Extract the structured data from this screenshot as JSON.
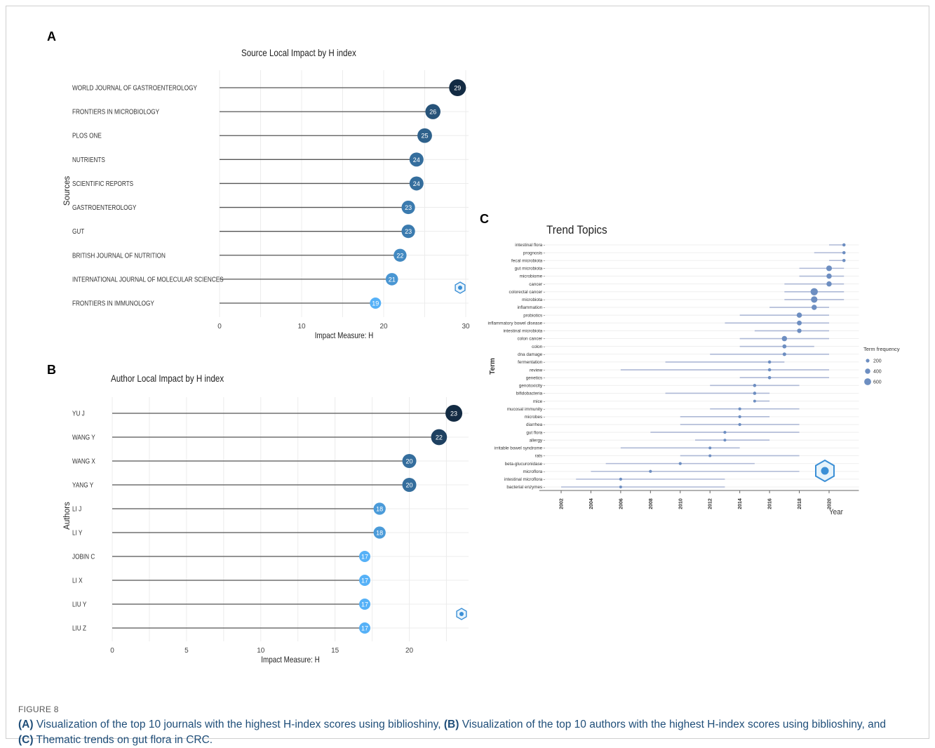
{
  "figure": {
    "label": "FIGURE 8",
    "caption": {
      "a_tag": "(A)",
      "a_text": " Visualization of the top 10 journals with the highest H-index scores using biblioshiny, ",
      "b_tag": "(B)",
      "b_text": " Visualization of the top 10 authors with the highest H-index scores using biblioshiny, and ",
      "c_tag": "(C)",
      "c_text": " Thematic trends on gut flora in CRC."
    }
  },
  "colors": {
    "dark": "#132b43",
    "light": "#56b1f7",
    "trend_point": "#6d8ec1",
    "trend_line": "#aeb9d6",
    "stem": "#555555"
  },
  "chart_data": [
    {
      "panel": "A",
      "type": "lollipop",
      "title": "Source Local Impact by H index",
      "xlabel": "Impact Measure: H",
      "ylabel": "Sources",
      "xlim": [
        0,
        30
      ],
      "xticks": [
        0,
        10,
        20,
        30
      ],
      "categories": [
        "WORLD JOURNAL OF GASTROENTEROLOGY",
        "FRONTIERS IN MICROBIOLOGY",
        "PLOS ONE",
        "NUTRIENTS",
        "SCIENTIFIC REPORTS",
        "GASTROENTEROLOGY",
        "GUT",
        "BRITISH JOURNAL OF NUTRITION",
        "INTERNATIONAL JOURNAL OF MOLECULAR SCIENCES",
        "FRONTIERS IN IMMUNOLOGY"
      ],
      "values": [
        29,
        26,
        25,
        24,
        24,
        23,
        23,
        22,
        21,
        19
      ]
    },
    {
      "panel": "B",
      "type": "lollipop",
      "title": "Author Local Impact by H index",
      "xlabel": "Impact Measure: H",
      "ylabel": "Authors",
      "xlim": [
        0,
        23.8
      ],
      "xticks": [
        0,
        5,
        10,
        15,
        20
      ],
      "categories": [
        "YU J",
        "WANG Y",
        "WANG X",
        "YANG Y",
        "LI J",
        "LI Y",
        "JOBIN C",
        "LI X",
        "LIU Y",
        "LIU Z"
      ],
      "values": [
        23,
        22,
        20,
        20,
        18,
        18,
        17,
        17,
        17,
        17
      ]
    },
    {
      "panel": "C",
      "type": "range-scatter",
      "title": "Trend Topics",
      "xlabel": "Year",
      "ylabel": "Term",
      "xlim": [
        2001,
        2022
      ],
      "xticks": [
        2002,
        2004,
        2006,
        2008,
        2010,
        2012,
        2014,
        2016,
        2018,
        2020
      ],
      "legend": {
        "title": "Term frequency",
        "placement": "right",
        "entries": [
          "200",
          "400",
          "600"
        ],
        "sizes": [
          200,
          400,
          600
        ]
      },
      "terms": [
        {
          "term": "intestinal flora",
          "start": 2020,
          "median": 2021,
          "end": 2021,
          "freq": 150
        },
        {
          "term": "prognosis",
          "start": 2019,
          "median": 2021,
          "end": 2021,
          "freq": 150
        },
        {
          "term": "fecal microbiota",
          "start": 2020,
          "median": 2021,
          "end": 2021,
          "freq": 150
        },
        {
          "term": "gut microbiota",
          "start": 2018,
          "median": 2020,
          "end": 2021,
          "freq": 450
        },
        {
          "term": "microbiome",
          "start": 2018,
          "median": 2020,
          "end": 2021,
          "freq": 400
        },
        {
          "term": "cancer",
          "start": 2017,
          "median": 2020,
          "end": 2021,
          "freq": 400
        },
        {
          "term": "colorectal cancer",
          "start": 2017,
          "median": 2019,
          "end": 2021,
          "freq": 650
        },
        {
          "term": "microbiota",
          "start": 2017,
          "median": 2019,
          "end": 2021,
          "freq": 550
        },
        {
          "term": "inflammation",
          "start": 2016,
          "median": 2019,
          "end": 2020,
          "freq": 400
        },
        {
          "term": "probiotics",
          "start": 2014,
          "median": 2018,
          "end": 2020,
          "freq": 400
        },
        {
          "term": "inflammatory bowel disease",
          "start": 2013,
          "median": 2018,
          "end": 2020,
          "freq": 350
        },
        {
          "term": "intestinal microbiota",
          "start": 2015,
          "median": 2018,
          "end": 2020,
          "freq": 300
        },
        {
          "term": "colon cancer",
          "start": 2014,
          "median": 2017,
          "end": 2020,
          "freq": 400
        },
        {
          "term": "colon",
          "start": 2014,
          "median": 2017,
          "end": 2019,
          "freq": 250
        },
        {
          "term": "dna damage",
          "start": 2012,
          "median": 2017,
          "end": 2020,
          "freq": 200
        },
        {
          "term": "fermentation",
          "start": 2009,
          "median": 2016,
          "end": 2017,
          "freq": 150
        },
        {
          "term": "review",
          "start": 2006,
          "median": 2016,
          "end": 2020,
          "freq": 150
        },
        {
          "term": "genetics",
          "start": 2014,
          "median": 2016,
          "end": 2020,
          "freq": 150
        },
        {
          "term": "genotoxicity",
          "start": 2012,
          "median": 2015,
          "end": 2018,
          "freq": 150
        },
        {
          "term": "bifidobacteria",
          "start": 2009,
          "median": 2015,
          "end": 2016,
          "freq": 150
        },
        {
          "term": "mice",
          "start": 2015,
          "median": 2015,
          "end": 2016,
          "freq": 100
        },
        {
          "term": "mucosal immunity",
          "start": 2012,
          "median": 2014,
          "end": 2018,
          "freq": 120
        },
        {
          "term": "microbes",
          "start": 2010,
          "median": 2014,
          "end": 2016,
          "freq": 120
        },
        {
          "term": "diarrhea",
          "start": 2010,
          "median": 2014,
          "end": 2018,
          "freq": 120
        },
        {
          "term": "gut flora",
          "start": 2008,
          "median": 2013,
          "end": 2018,
          "freq": 120
        },
        {
          "term": "allergy",
          "start": 2011,
          "median": 2013,
          "end": 2016,
          "freq": 100
        },
        {
          "term": "irritable bowel syndrome",
          "start": 2006,
          "median": 2012,
          "end": 2014,
          "freq": 100
        },
        {
          "term": "rats",
          "start": 2010,
          "median": 2012,
          "end": 2018,
          "freq": 100
        },
        {
          "term": "beta-glucuronidase",
          "start": 2005,
          "median": 2010,
          "end": 2015,
          "freq": 120
        },
        {
          "term": "microflora",
          "start": 2004,
          "median": 2008,
          "end": 2018,
          "freq": 120
        },
        {
          "term": "intestinal microflora",
          "start": 2003,
          "median": 2006,
          "end": 2013,
          "freq": 120
        },
        {
          "term": "bacterial enzymes",
          "start": 2002,
          "median": 2006,
          "end": 2013,
          "freq": 100
        }
      ]
    }
  ]
}
